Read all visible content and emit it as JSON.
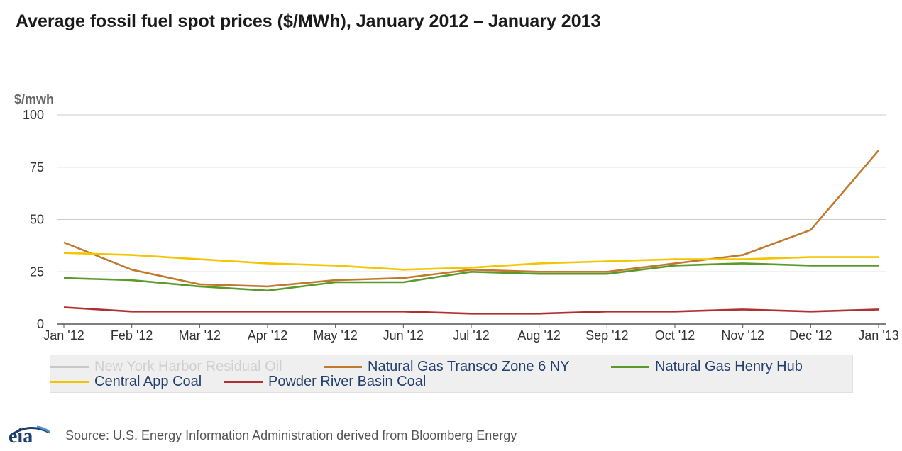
{
  "title": "Average fossil fuel spot prices ($/MWh), January 2012 – January 2013",
  "source": "Source: U.S. Energy Information Administration derived from Bloomberg Energy",
  "logo_text": "eia",
  "chart_data": {
    "type": "line",
    "title": "Average fossil fuel spot prices ($/MWh), January 2012 – January 2013",
    "ylabel": "$/mwh",
    "xlabel": "",
    "ylim": [
      0,
      100
    ],
    "yticks": [
      0,
      25,
      50,
      75,
      100
    ],
    "grid": true,
    "legend_position": "bottom",
    "categories": [
      "Jan '12",
      "Feb '12",
      "Mar '12",
      "Apr '12",
      "May '12",
      "Jun '12",
      "Jul '12",
      "Aug '12",
      "Sep '12",
      "Oct '12",
      "Nov '12",
      "Dec '12",
      "Jan '13"
    ],
    "series": [
      {
        "name": "New York Harbor Residual Oil",
        "color": "#c8c8c8",
        "muted": true,
        "values": [
          null,
          null,
          null,
          null,
          null,
          null,
          null,
          null,
          null,
          null,
          null,
          null,
          null
        ]
      },
      {
        "name": "Natural Gas Transco Zone 6 NY",
        "color": "#c07a2f",
        "values": [
          39,
          26,
          19,
          18,
          21,
          22,
          26,
          25,
          25,
          29,
          33,
          45,
          83
        ]
      },
      {
        "name": "Natural Gas Henry Hub",
        "color": "#5a9a2a",
        "values": [
          22,
          21,
          18,
          16,
          20,
          20,
          25,
          24,
          24,
          28,
          29,
          28,
          28
        ]
      },
      {
        "name": "Central App Coal",
        "color": "#f5c400",
        "values": [
          34,
          33,
          31,
          29,
          28,
          26,
          27,
          29,
          30,
          31,
          31,
          32,
          32
        ]
      },
      {
        "name": "Powder River Basin Coal",
        "color": "#b03030",
        "values": [
          8,
          6,
          6,
          6,
          6,
          6,
          5,
          5,
          6,
          6,
          7,
          6,
          7
        ]
      }
    ]
  }
}
